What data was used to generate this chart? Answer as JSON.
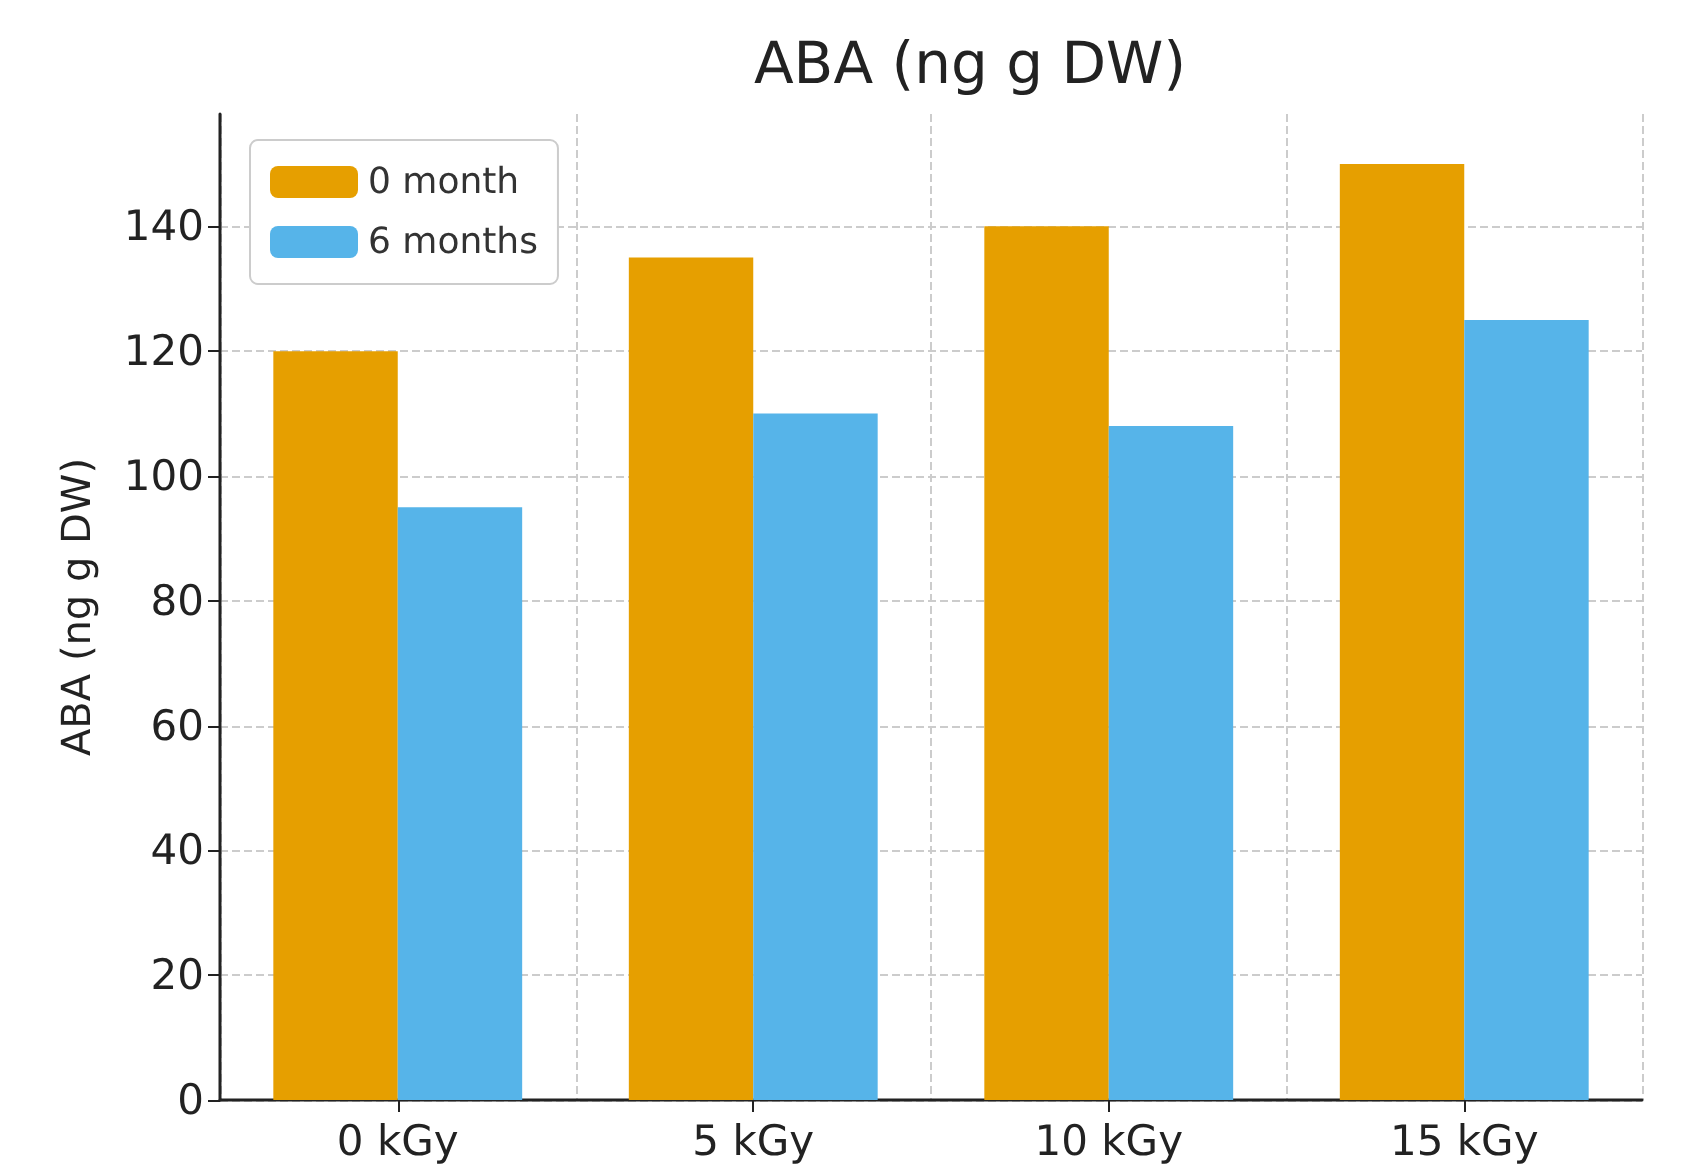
{
  "chart_data": {
    "type": "bar",
    "title": "ABA (ng g DW)",
    "ylabel": "ABA (ng g DW)",
    "categories": [
      "0 kGy",
      "5 kGy",
      "10 kGy",
      "15 kGy"
    ],
    "series": [
      {
        "name": "0 month",
        "color": "#e69f00",
        "values": [
          120,
          135,
          140,
          150
        ]
      },
      {
        "name": "6 months",
        "color": "#56b4e9",
        "values": [
          95,
          110,
          108,
          125
        ]
      }
    ],
    "ylim": [
      0,
      158
    ],
    "yticks": [
      0,
      20,
      40,
      60,
      80,
      100,
      120,
      140
    ],
    "grid": true,
    "legend": "top left"
  }
}
